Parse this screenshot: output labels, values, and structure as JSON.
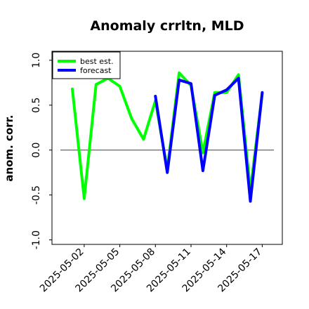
{
  "chart_data": {
    "type": "line",
    "title": "Anomaly crrltn, MLD",
    "xlabel": "",
    "ylabel": "anom. corr.",
    "ylim": [
      -1.05,
      1.1
    ],
    "yticks": [
      -1.0,
      -0.5,
      0.0,
      0.5,
      1.0
    ],
    "ytick_labels": [
      "-1.0",
      "-0.5",
      "0.0",
      "0.5",
      "1.0"
    ],
    "xticks": [
      "2025-05-02",
      "2025-05-05",
      "2025-05-08",
      "2025-05-11",
      "2025-05-14",
      "2025-05-17"
    ],
    "highlight_tick": "2025-05-08",
    "highlight_color": "#228b22",
    "reference_line": 0.0,
    "legend_position": "top-left",
    "series": [
      {
        "name": "best est.",
        "color": "#00ff00",
        "x": [
          "2025-05-01",
          "2025-05-02",
          "2025-05-03",
          "2025-05-04",
          "2025-05-05",
          "2025-05-06",
          "2025-05-07",
          "2025-05-08",
          "2025-05-09",
          "2025-05-10",
          "2025-05-11",
          "2025-05-12",
          "2025-05-13",
          "2025-05-14",
          "2025-05-15",
          "2025-05-16",
          "2025-05-17"
        ],
        "values": [
          0.68,
          -0.54,
          0.73,
          0.8,
          0.71,
          0.35,
          0.12,
          0.55,
          -0.22,
          0.86,
          0.72,
          -0.03,
          0.64,
          0.64,
          0.84,
          -0.45,
          0.63
        ]
      },
      {
        "name": "forecast",
        "color": "#0000ff",
        "x": [
          "2025-05-08",
          "2025-05-09",
          "2025-05-10",
          "2025-05-11",
          "2025-05-12",
          "2025-05-13",
          "2025-05-14",
          "2025-05-15",
          "2025-05-16",
          "2025-05-17"
        ],
        "values": [
          0.6,
          -0.25,
          0.78,
          0.74,
          -0.23,
          0.61,
          0.67,
          0.8,
          -0.57,
          0.64
        ]
      }
    ]
  }
}
